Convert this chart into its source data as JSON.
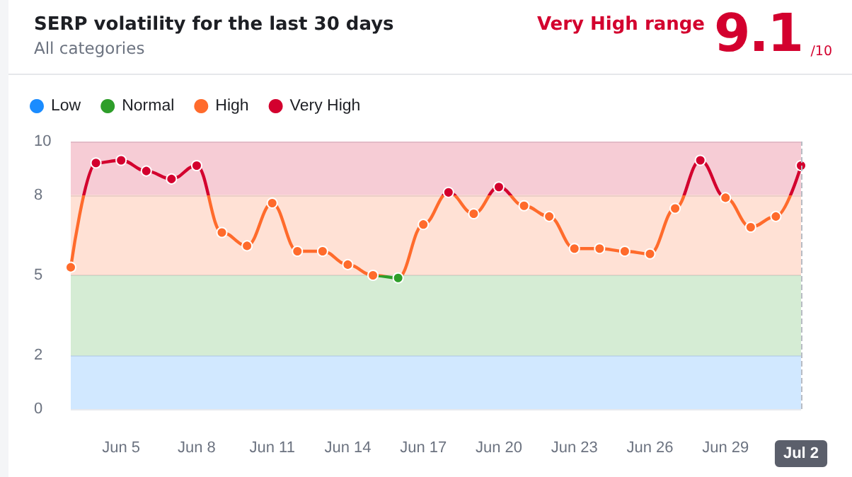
{
  "chart_data": {
    "type": "line",
    "title": "SERP volatility for the last 30 days",
    "subtitle": "All categories",
    "annotations": [
      "Very High range",
      "9.1",
      "/10"
    ],
    "categories": [
      null,
      null,
      "Jun 5",
      null,
      null,
      "Jun 8",
      null,
      null,
      "Jun 11",
      null,
      null,
      "Jun 14",
      null,
      null,
      "Jun 17",
      null,
      null,
      "Jun 20",
      null,
      null,
      "Jun 23",
      null,
      null,
      "Jun 26",
      null,
      null,
      "Jun 29",
      null,
      null,
      "Jul 2"
    ],
    "values": [
      5.3,
      9.2,
      9.3,
      8.9,
      8.6,
      9.1,
      6.6,
      6.1,
      7.7,
      5.9,
      5.9,
      5.4,
      5.0,
      4.9,
      6.9,
      8.1,
      7.3,
      8.3,
      7.6,
      7.2,
      6.0,
      6.0,
      5.9,
      5.8,
      7.5,
      9.3,
      7.9,
      6.8,
      7.2,
      9.1
    ],
    "ylim": [
      0,
      10
    ],
    "yticks": [
      0,
      2,
      5,
      8,
      10
    ],
    "grid": "y",
    "marker": "circle",
    "legend": "top left",
    "bands": [
      {
        "axis": "y",
        "from": 0,
        "to": 2,
        "label": "Low",
        "color": "#1a8cff"
      },
      {
        "axis": "y",
        "from": 2,
        "to": 5,
        "label": "Normal",
        "color": "#2e9e2a"
      },
      {
        "axis": "y",
        "from": 5,
        "to": 8,
        "label": "High",
        "color": "#ff6b2c"
      },
      {
        "axis": "y",
        "from": 8,
        "to": 10,
        "label": "Very High",
        "color": "#d3002e"
      }
    ],
    "ref_lines": [
      {
        "axis": "x",
        "value": "Jul 2",
        "color": "#b8bcc4",
        "line_style": "dashed"
      }
    ]
  }
}
